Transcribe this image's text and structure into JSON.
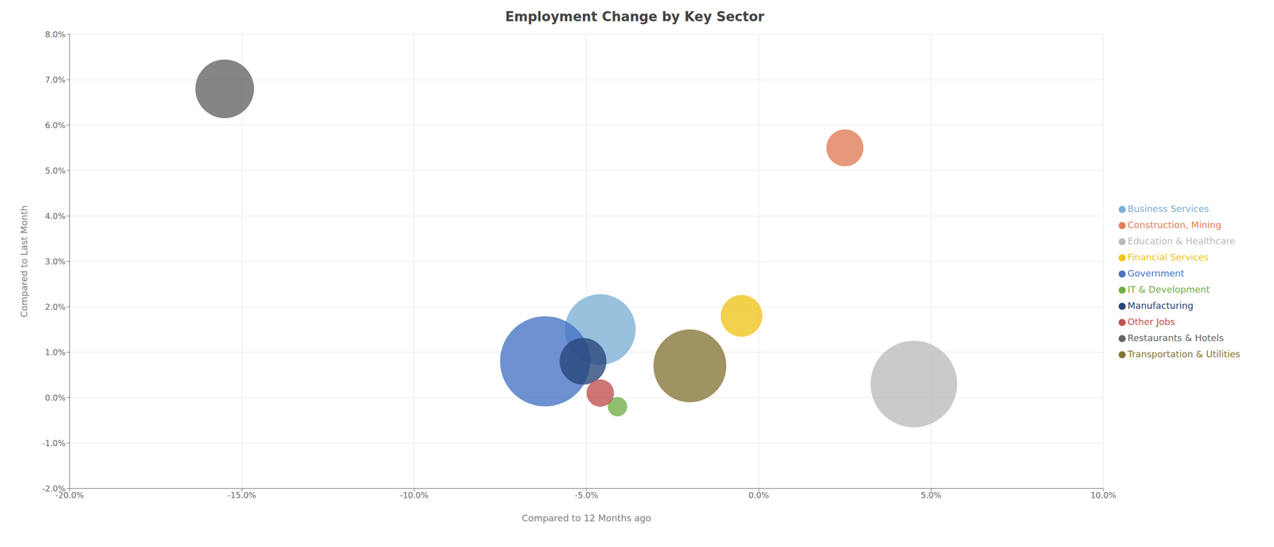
{
  "chart_data": {
    "type": "bubble",
    "title": "Employment Change by Key Sector",
    "x_label": "Compared to 12 Months ago",
    "y_label": "Compared to Last Month",
    "xlim": [
      -0.2,
      0.1
    ],
    "ylim": [
      -0.02,
      0.08
    ],
    "xticks": [
      {
        "value": -0.2,
        "label": "-20.0%"
      },
      {
        "value": -0.15,
        "label": "-15.0%"
      },
      {
        "value": -0.1,
        "label": "-10.0%"
      },
      {
        "value": -0.05,
        "label": "-5.0%"
      },
      {
        "value": 0.0,
        "label": "0.0%"
      },
      {
        "value": 0.05,
        "label": "5.0%"
      },
      {
        "value": 0.1,
        "label": "10.0%"
      }
    ],
    "yticks": [
      {
        "value": -0.02,
        "label": "-2.0%"
      },
      {
        "value": -0.01,
        "label": "-1.0%"
      },
      {
        "value": 0.0,
        "label": "0.0%"
      },
      {
        "value": 0.01,
        "label": "1.0%"
      },
      {
        "value": 0.02,
        "label": "2.0%"
      },
      {
        "value": 0.03,
        "label": "3.0%"
      },
      {
        "value": 0.04,
        "label": "4.0%"
      },
      {
        "value": 0.05,
        "label": "5.0%"
      },
      {
        "value": 0.06,
        "label": "6.0%"
      },
      {
        "value": 0.07,
        "label": "7.0%"
      },
      {
        "value": 0.08,
        "label": "8.0%"
      }
    ],
    "grid": true,
    "legend": "right",
    "series": [
      {
        "name": "Business Services",
        "color": "#7bafd4",
        "x": -0.046,
        "y": 0.015,
        "size": 8000
      },
      {
        "name": "Construction, Mining",
        "color": "#e07b54",
        "x": 0.025,
        "y": 0.055,
        "size": 2200
      },
      {
        "name": "Education & Healthcare",
        "color": "#bbbbbb",
        "x": 0.045,
        "y": 0.003,
        "size": 12000
      },
      {
        "name": "Financial Services",
        "color": "#f0c419",
        "x": -0.005,
        "y": 0.018,
        "size": 2800
      },
      {
        "name": "Government",
        "color": "#4472c4",
        "x": -0.062,
        "y": 0.008,
        "size": 13000
      },
      {
        "name": "IT & Development",
        "color": "#70ad47",
        "x": -0.041,
        "y": -0.002,
        "size": 600
      },
      {
        "name": "Manufacturing",
        "color": "#264478",
        "x": -0.051,
        "y": 0.008,
        "size": 3500
      },
      {
        "name": "Other Jobs",
        "color": "#c0504d",
        "x": -0.046,
        "y": 0.001,
        "size": 1200
      },
      {
        "name": "Restaurants & Hotels",
        "color": "#636363",
        "x": -0.155,
        "y": 0.068,
        "size": 5500
      },
      {
        "name": "Transportation & Utilities",
        "color": "#857437",
        "x": -0.02,
        "y": 0.007,
        "size": 8500
      }
    ]
  }
}
